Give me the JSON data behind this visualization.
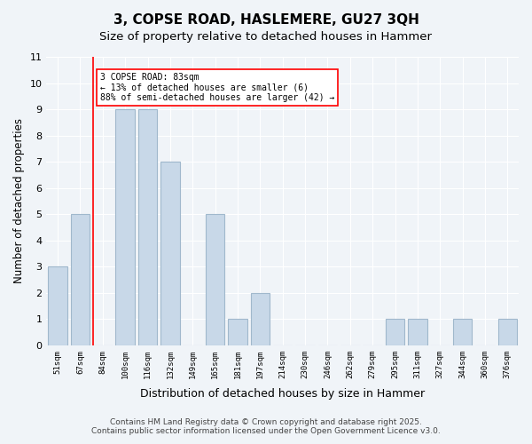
{
  "title": "3, COPSE ROAD, HASLEMERE, GU27 3QH",
  "subtitle": "Size of property relative to detached houses in Hammer",
  "xlabel": "Distribution of detached houses by size in Hammer",
  "ylabel": "Number of detached properties",
  "bin_labels": [
    "51sqm",
    "67sqm",
    "84sqm",
    "100sqm",
    "116sqm",
    "132sqm",
    "149sqm",
    "165sqm",
    "181sqm",
    "197sqm",
    "214sqm",
    "230sqm",
    "246sqm",
    "262sqm",
    "279sqm",
    "295sqm",
    "311sqm",
    "327sqm",
    "344sqm",
    "360sqm",
    "376sqm"
  ],
  "bar_heights": [
    3,
    5,
    0,
    9,
    9,
    7,
    0,
    5,
    1,
    2,
    0,
    0,
    0,
    0,
    0,
    1,
    1,
    0,
    1,
    0,
    1
  ],
  "bar_color": "#c8d8e8",
  "bar_edge_color": "#a0b8cc",
  "property_line_x": 2,
  "property_line_label": "3 COPSE ROAD: 83sqm",
  "annotation_line1": "← 13% of detached houses are smaller (6)",
  "annotation_line2": "88% of semi-detached houses are larger (42) →",
  "annotation_box_color": "white",
  "annotation_box_edge": "red",
  "line_color": "red",
  "ylim": [
    0,
    11
  ],
  "yticks": [
    0,
    1,
    2,
    3,
    4,
    5,
    6,
    7,
    8,
    9,
    10,
    11
  ],
  "background_color": "#f0f4f8",
  "footer_line1": "Contains HM Land Registry data © Crown copyright and database right 2025.",
  "footer_line2": "Contains public sector information licensed under the Open Government Licence v3.0."
}
